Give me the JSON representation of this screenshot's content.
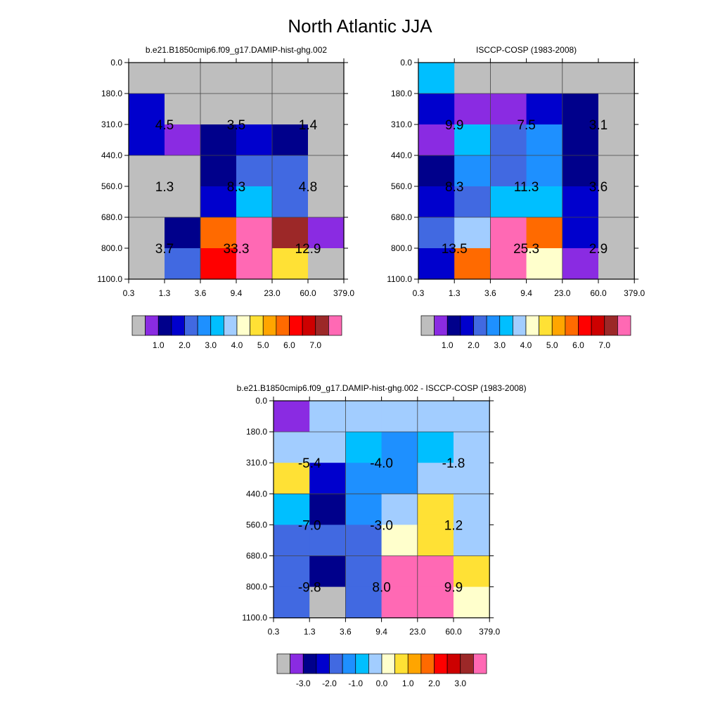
{
  "title": "North Atlantic JJA",
  "colors": {
    "ncl_palette": [
      "#bebebe",
      "#8a2be2",
      "#00008b",
      "#0000cd",
      "#4169e1",
      "#1e90ff",
      "#00bfff",
      "#a2cdff",
      "#ffffcc",
      "#ffe135",
      "#ffa500",
      "#ff6a00",
      "#ff0000",
      "#cd0000",
      "#9c2828",
      "#ff69b4"
    ]
  },
  "chart_data": [
    {
      "type": "heatmap",
      "title": "b.e21.B1850cmip6.f09_g17.DAMIP-hist-ghg.002",
      "x_tick_labels": [
        "0.3",
        "1.3",
        "3.6",
        "9.4",
        "23.0",
        "60.0",
        "379.0"
      ],
      "y_tick_labels": [
        "0.0",
        "180.0",
        "310.0",
        "440.0",
        "560.0",
        "680.0",
        "800.0",
        "1100.0"
      ],
      "cell_color_index": [
        [
          0,
          0,
          0,
          0,
          0,
          0
        ],
        [
          3,
          0,
          0,
          0,
          0,
          0
        ],
        [
          3,
          1,
          2,
          3,
          2,
          0
        ],
        [
          0,
          0,
          2,
          4,
          4,
          0
        ],
        [
          0,
          0,
          3,
          6,
          4,
          0
        ],
        [
          0,
          2,
          11,
          15,
          14,
          1
        ],
        [
          0,
          4,
          12,
          15,
          9,
          0
        ]
      ],
      "annotations": [
        {
          "col": 0,
          "row": 0,
          "text": "4.5"
        },
        {
          "col": 1,
          "row": 0,
          "text": "3.5"
        },
        {
          "col": 2,
          "row": 0,
          "text": "1.4"
        },
        {
          "col": 0,
          "row": 1,
          "text": "1.3"
        },
        {
          "col": 1,
          "row": 1,
          "text": "8.3"
        },
        {
          "col": 2,
          "row": 1,
          "text": "4.8"
        },
        {
          "col": 0,
          "row": 2,
          "text": "3.7"
        },
        {
          "col": 1,
          "row": 2,
          "text": "33.3"
        },
        {
          "col": 2,
          "row": 2,
          "text": "12.9"
        }
      ],
      "colorbar": {
        "colors_index": [
          0,
          1,
          2,
          3,
          4,
          5,
          6,
          7,
          8,
          9,
          10,
          11,
          12,
          13,
          14,
          15
        ],
        "labels": [
          "1.0",
          "2.0",
          "3.0",
          "4.0",
          "5.0",
          "6.0",
          "7.0"
        ],
        "label_boundaries": [
          2,
          4,
          6,
          8,
          10,
          12,
          14
        ]
      }
    },
    {
      "type": "heatmap",
      "title": "ISCCP-COSP (1983-2008)",
      "x_tick_labels": [
        "0.3",
        "1.3",
        "3.6",
        "9.4",
        "23.0",
        "60.0",
        "379.0"
      ],
      "y_tick_labels": [
        "0.0",
        "180.0",
        "310.0",
        "440.0",
        "560.0",
        "680.0",
        "800.0",
        "1100.0"
      ],
      "cell_color_index": [
        [
          6,
          0,
          0,
          0,
          0,
          0
        ],
        [
          3,
          1,
          1,
          3,
          2,
          0
        ],
        [
          1,
          6,
          4,
          5,
          2,
          0
        ],
        [
          2,
          5,
          4,
          5,
          2,
          0
        ],
        [
          3,
          4,
          6,
          6,
          3,
          0
        ],
        [
          4,
          7,
          15,
          11,
          3,
          0
        ],
        [
          3,
          11,
          15,
          8,
          1,
          0
        ]
      ],
      "annotations": [
        {
          "col": 0,
          "row": 0,
          "text": "9.9"
        },
        {
          "col": 1,
          "row": 0,
          "text": "7.5"
        },
        {
          "col": 2,
          "row": 0,
          "text": "3.1"
        },
        {
          "col": 0,
          "row": 1,
          "text": "8.3"
        },
        {
          "col": 1,
          "row": 1,
          "text": "11.3"
        },
        {
          "col": 2,
          "row": 1,
          "text": "3.6"
        },
        {
          "col": 0,
          "row": 2,
          "text": "13.5"
        },
        {
          "col": 1,
          "row": 2,
          "text": "25.3"
        },
        {
          "col": 2,
          "row": 2,
          "text": "2.9"
        }
      ],
      "colorbar": {
        "colors_index": [
          0,
          1,
          2,
          3,
          4,
          5,
          6,
          7,
          8,
          9,
          10,
          11,
          12,
          13,
          14,
          15
        ],
        "labels": [
          "1.0",
          "2.0",
          "3.0",
          "4.0",
          "5.0",
          "6.0",
          "7.0"
        ],
        "label_boundaries": [
          2,
          4,
          6,
          8,
          10,
          12,
          14
        ]
      }
    },
    {
      "type": "heatmap",
      "title": "b.e21.B1850cmip6.f09_g17.DAMIP-hist-ghg.002 - ISCCP-COSP (1983-2008)",
      "x_tick_labels": [
        "0.3",
        "1.3",
        "3.6",
        "9.4",
        "23.0",
        "60.0",
        "379.0"
      ],
      "y_tick_labels": [
        "0.0",
        "180.0",
        "310.0",
        "440.0",
        "560.0",
        "680.0",
        "800.0",
        "1100.0"
      ],
      "cell_color_index": [
        [
          1,
          7,
          7,
          7,
          7,
          7
        ],
        [
          7,
          7,
          6,
          5,
          6,
          7
        ],
        [
          9,
          3,
          5,
          5,
          7,
          7
        ],
        [
          6,
          2,
          5,
          7,
          9,
          7
        ],
        [
          4,
          4,
          4,
          8,
          9,
          7
        ],
        [
          4,
          2,
          4,
          15,
          15,
          9
        ],
        [
          4,
          0,
          4,
          15,
          15,
          8
        ]
      ],
      "annotations": [
        {
          "col": 0,
          "row": 0,
          "text": "-5.4"
        },
        {
          "col": 1,
          "row": 0,
          "text": "-4.0"
        },
        {
          "col": 2,
          "row": 0,
          "text": "-1.8"
        },
        {
          "col": 0,
          "row": 1,
          "text": "-7.0"
        },
        {
          "col": 1,
          "row": 1,
          "text": "-3.0"
        },
        {
          "col": 2,
          "row": 1,
          "text": "1.2"
        },
        {
          "col": 0,
          "row": 2,
          "text": "-9.8"
        },
        {
          "col": 1,
          "row": 2,
          "text": "8.0"
        },
        {
          "col": 2,
          "row": 2,
          "text": "9.9"
        }
      ],
      "colorbar": {
        "colors_index": [
          0,
          1,
          2,
          3,
          4,
          5,
          6,
          7,
          8,
          9,
          10,
          11,
          12,
          13,
          14,
          15
        ],
        "labels": [
          "-3.0",
          "-2.0",
          "-1.0",
          "0.0",
          "1.0",
          "2.0",
          "3.0"
        ],
        "label_boundaries": [
          2,
          4,
          6,
          8,
          10,
          12,
          14
        ]
      }
    }
  ]
}
